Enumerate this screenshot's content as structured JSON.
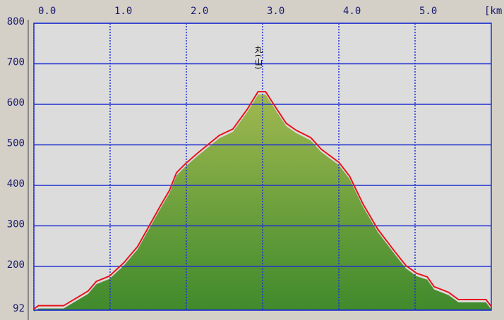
{
  "chart_data": {
    "type": "area",
    "x_label": "[km",
    "annotation": "丸(山)",
    "x": [
      0,
      0.06,
      0.39,
      0.71,
      0.82,
      0.99,
      1.18,
      1.36,
      1.48,
      1.67,
      1.78,
      1.87,
      1.98,
      2.15,
      2.43,
      2.61,
      2.8,
      2.94,
      3.04,
      3.17,
      3.31,
      3.44,
      3.63,
      3.77,
      4.0,
      4.14,
      4.32,
      4.51,
      4.72,
      4.88,
      5.02,
      5.16,
      5.25,
      5.44,
      5.57,
      5.93,
      6.0
    ],
    "series": [
      {
        "color": "#e8141c",
        "fill_color": "#6fa03c",
        "values": [
          95,
          103,
          103,
          139,
          163,
          176,
          209,
          249,
          289,
          353,
          388,
          431,
          452,
          480,
          523,
          539,
          588,
          631,
          631,
          593,
          553,
          536,
          518,
          489,
          457,
          423,
          353,
          292,
          240,
          202,
          183,
          174,
          150,
          136,
          118,
          118,
          101
        ]
      }
    ],
    "xlim": [
      0,
      6
    ],
    "xticks": [
      {
        "value": 0,
        "label": "0.0"
      },
      {
        "value": 1,
        "label": "1.0"
      },
      {
        "value": 2,
        "label": "2.0"
      },
      {
        "value": 3,
        "label": "3.0"
      },
      {
        "value": 4,
        "label": "4.0"
      },
      {
        "value": 5,
        "label": "5.0"
      }
    ],
    "ylim": [
      92,
      800
    ],
    "yticks": [
      92,
      200,
      300,
      400,
      500,
      600,
      700,
      800
    ],
    "grid": true
  }
}
